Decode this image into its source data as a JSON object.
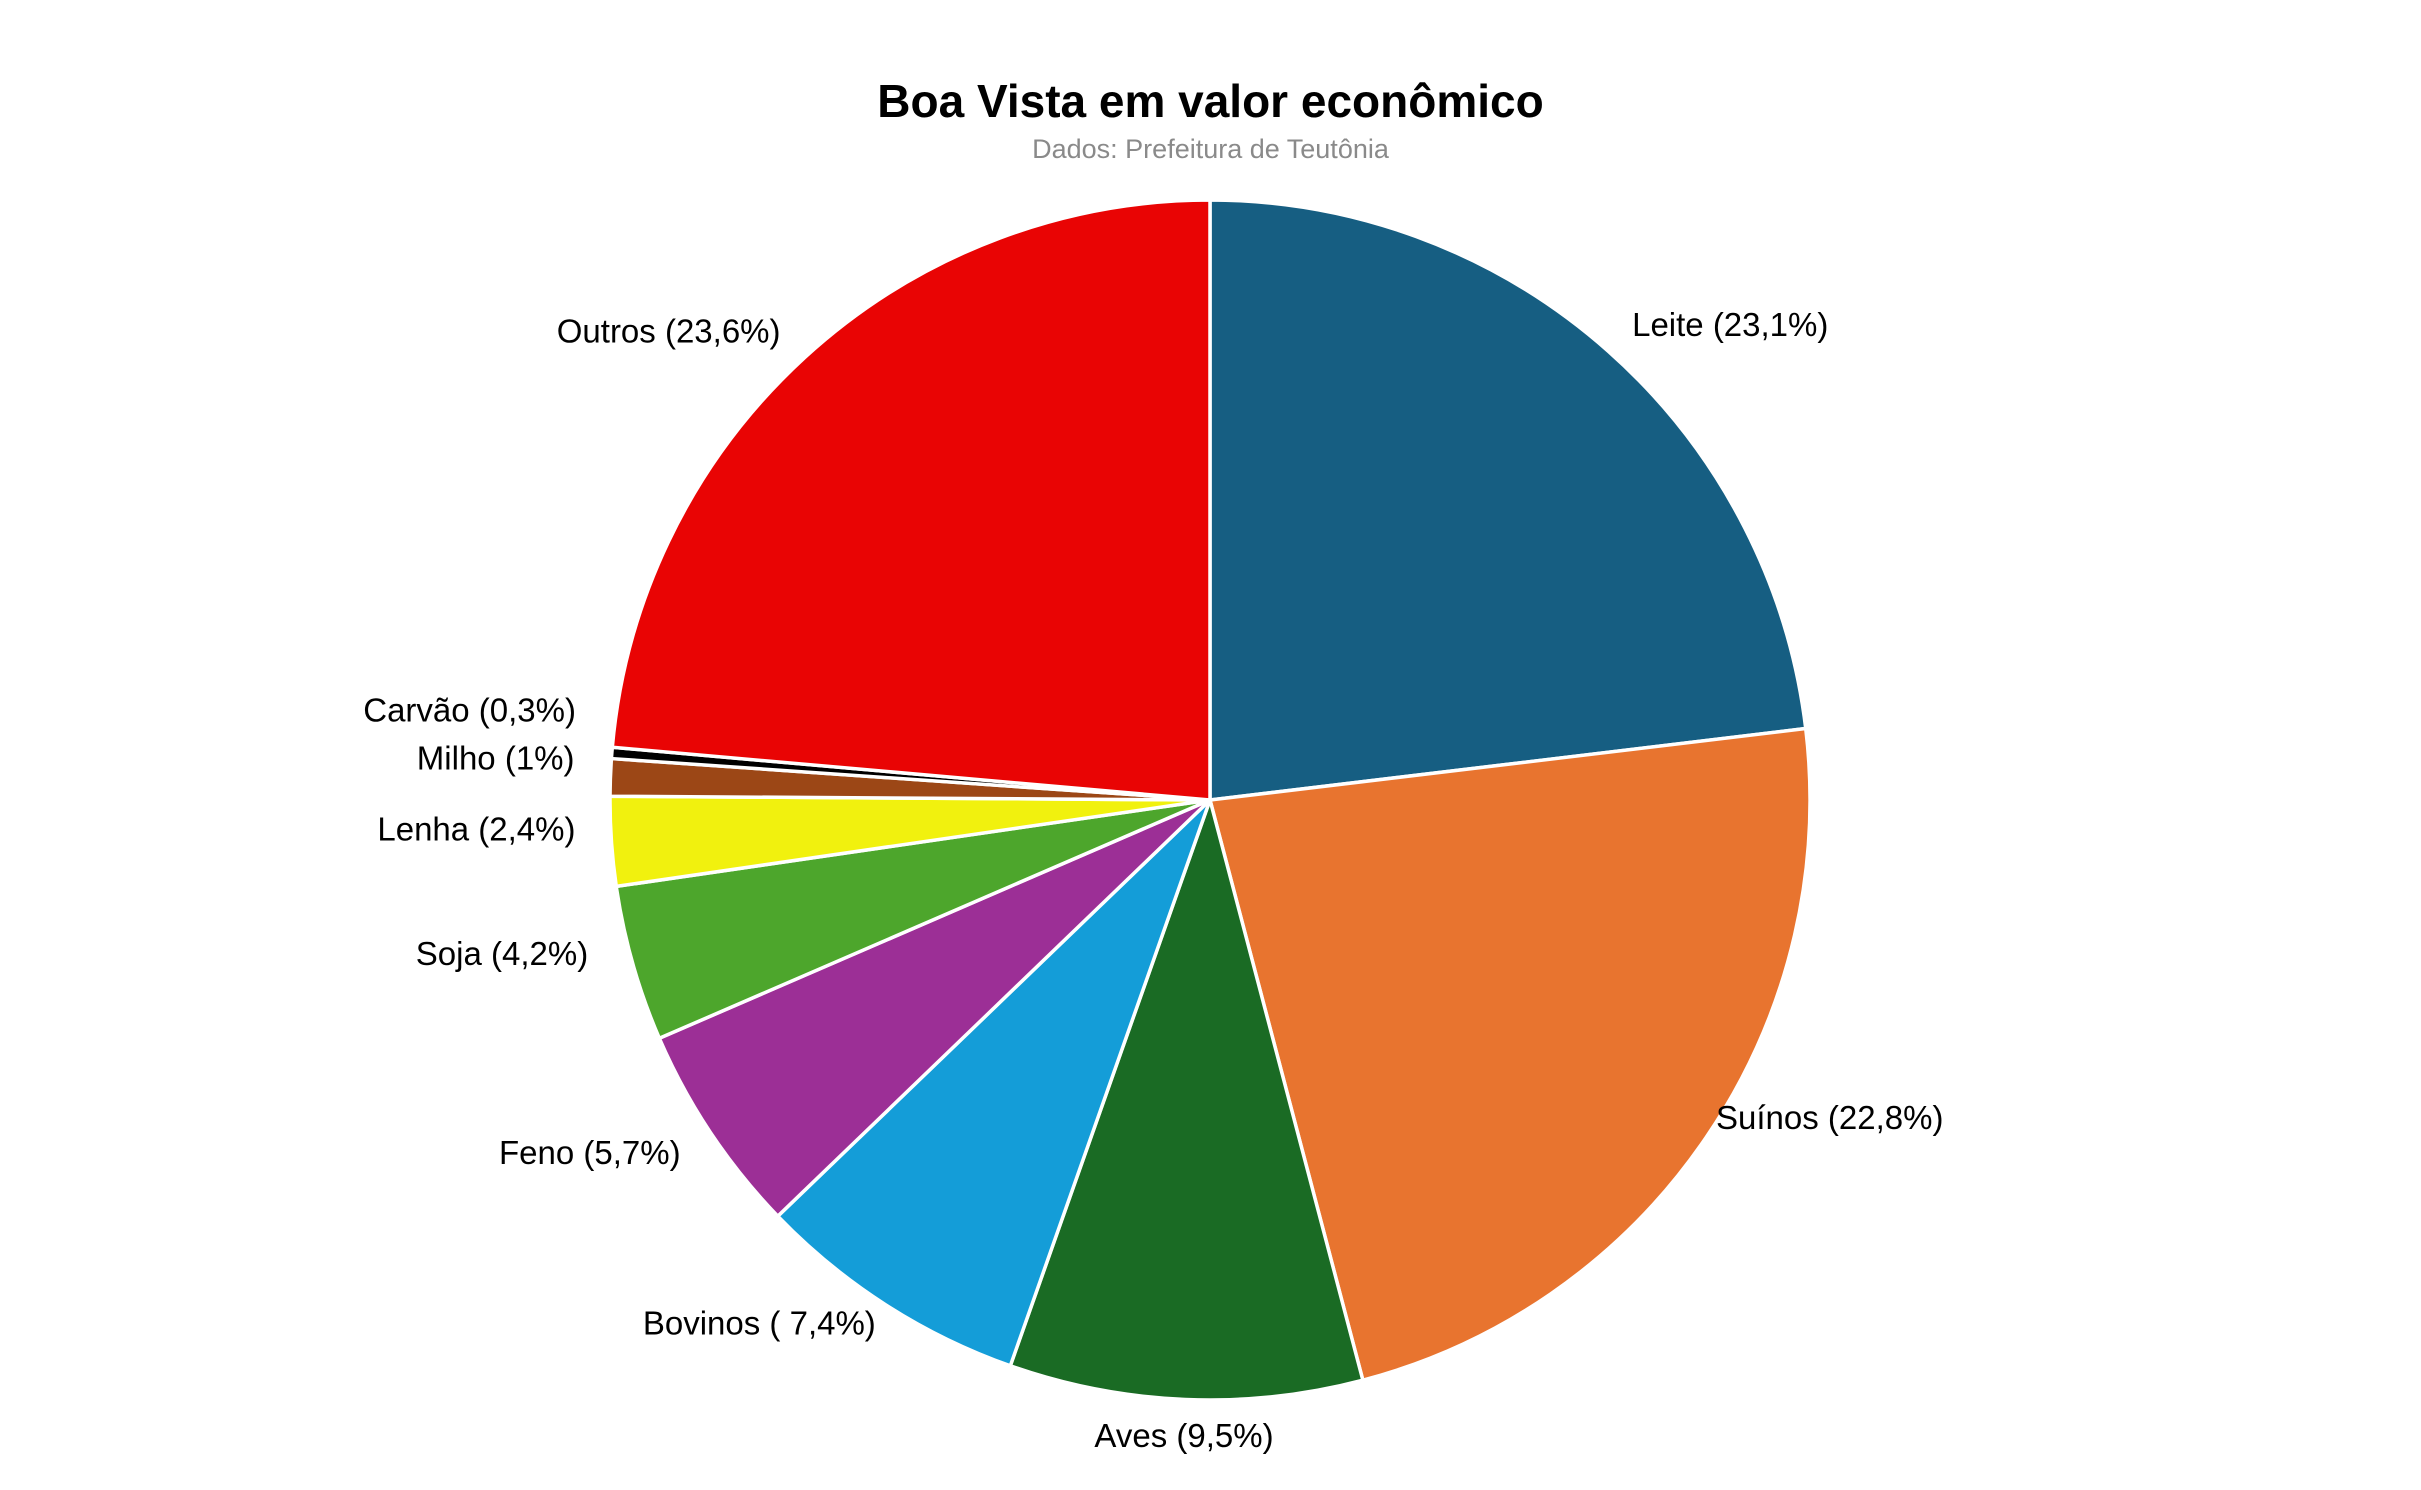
{
  "chart_data": {
    "type": "pie",
    "title": "Boa Vista em valor econômico",
    "subtitle": "Dados: Prefeitura de Teutônia",
    "start_angle": "12-oclock",
    "direction": "clockwise",
    "legend_position": "none",
    "background_color": "#ffffff",
    "subtitle_color": "#8a8a8a",
    "slice_border_color": "#ffffff",
    "slices": [
      {
        "label": "Leite",
        "value": 23.1,
        "display": "Leite (23,1%)",
        "color": "#165e82"
      },
      {
        "label": "Suínos",
        "value": 22.8,
        "display": "Suínos (22,8%)",
        "color": "#e8742f"
      },
      {
        "label": "Aves",
        "value": 9.5,
        "display": "Aves (9,5%)",
        "color": "#1a6b24"
      },
      {
        "label": "Bovinos",
        "value": 7.4,
        "display": "Bovinos ( 7,4%)",
        "color": "#149dd8"
      },
      {
        "label": "Feno",
        "value": 5.7,
        "display": "Feno (5,7%)",
        "color": "#9c2f96"
      },
      {
        "label": "Soja",
        "value": 4.2,
        "display": "Soja (4,2%)",
        "color": "#4da62c"
      },
      {
        "label": "Lenha",
        "value": 2.4,
        "display": "Lenha (2,4%)",
        "color": "#f1f10e"
      },
      {
        "label": "Milho",
        "value": 1.0,
        "display": "Milho (1%)",
        "color": "#9c4716"
      },
      {
        "label": "Carvão",
        "value": 0.3,
        "display": "Carvão (0,3%)",
        "color": "#000000"
      },
      {
        "label": "Outros",
        "value": 23.6,
        "display": "Outros (23,6%)",
        "color": "#e90404"
      }
    ]
  }
}
